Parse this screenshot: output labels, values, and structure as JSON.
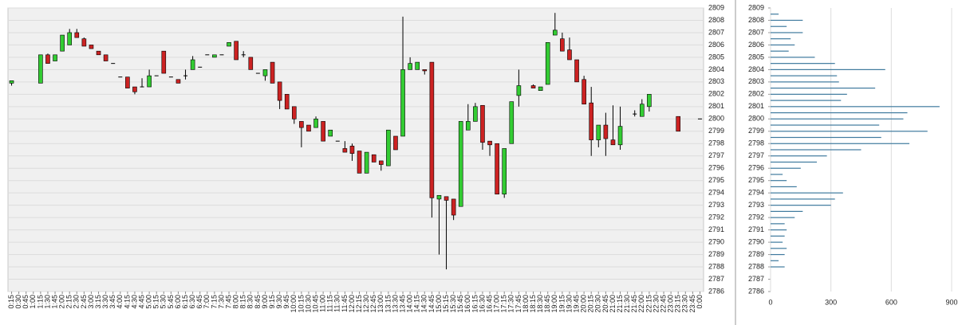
{
  "chart_data": [
    {
      "type": "candlestick",
      "up_color": "#33cc33",
      "down_color": "#cc2222",
      "grid": true,
      "ylim": [
        2786,
        2809
      ],
      "yticks": [
        2786,
        2787,
        2788,
        2789,
        2790,
        2791,
        2792,
        2793,
        2794,
        2795,
        2796,
        2797,
        2798,
        2799,
        2800,
        2801,
        2802,
        2803,
        2804,
        2805,
        2806,
        2807,
        2808,
        2809
      ],
      "categories": [
        "0:15",
        "0:30",
        "0:45",
        "1:00",
        "1:15",
        "1:30",
        "1:45",
        "2:00",
        "2:15",
        "2:30",
        "2:45",
        "3:00",
        "3:15",
        "3:30",
        "3:45",
        "4:00",
        "4:15",
        "4:30",
        "4:45",
        "5:00",
        "5:15",
        "5:30",
        "5:45",
        "6:00",
        "6:15",
        "6:30",
        "6:45",
        "7:00",
        "7:15",
        "7:30",
        "7:45",
        "8:00",
        "8:15",
        "8:30",
        "8:45",
        "9:00",
        "9:15",
        "9:30",
        "9:45",
        "10:00",
        "10:15",
        "10:30",
        "10:45",
        "11:00",
        "11:15",
        "11:30",
        "11:45",
        "12:00",
        "12:15",
        "12:30",
        "12:45",
        "13:00",
        "13:15",
        "13:30",
        "13:45",
        "14:00",
        "14:15",
        "14:30",
        "14:45",
        "15:00",
        "15:15",
        "15:30",
        "15:45",
        "16:00",
        "16:15",
        "16:30",
        "16:45",
        "17:00",
        "17:15",
        "17:30",
        "17:45",
        "18:00",
        "18:15",
        "18:30",
        "18:45",
        "19:00",
        "19:15",
        "19:30",
        "19:45",
        "20:00",
        "20:15",
        "20:30",
        "20:45",
        "21:00",
        "21:15",
        "21:30",
        "21:45",
        "22:00",
        "22:15",
        "22:30",
        "22:45",
        "23:00",
        "23:15",
        "23:30",
        "23:45",
        "0:00"
      ],
      "open": [
        2802.9,
        null,
        null,
        null,
        2802.9,
        2805.2,
        2804.7,
        2805.5,
        2806,
        2807,
        2806.5,
        2806,
        2805.5,
        2805.2,
        2804.5,
        2803.4,
        2803.4,
        2802.6,
        2802.6,
        2802.6,
        2803.5,
        2805.5,
        2803.4,
        2803.2,
        2803.5,
        2804,
        2804.2,
        2805.2,
        2805,
        2805.2,
        2805.9,
        2806.3,
        2805.2,
        2805,
        2803.7,
        2803.5,
        2804.6,
        2803,
        2802,
        2801,
        2799.8,
        2799.5,
        2799.3,
        2799.8,
        2798.6,
        2798.2,
        2797.6,
        2797.8,
        2797.4,
        2795.6,
        2797.1,
        2796.6,
        2796.2,
        2798.6,
        2798.6,
        2804,
        2804,
        2804,
        2804.6,
        2793.5,
        2793.7,
        2793.5,
        2792.9,
        2799.1,
        2799.8,
        2801.1,
        2798.2,
        2798,
        2793.9,
        2798,
        2801.9,
        null,
        2802.7,
        2802.3,
        2802.8,
        2806.8,
        2806.5,
        2805.6,
        2804.8,
        2803.2,
        2801.3,
        2798.3,
        2799.5,
        2798.3,
        2797.9,
        null,
        2800.4,
        2800.2,
        2801,
        null,
        null,
        null,
        2800.2,
        null,
        null,
        2800
      ],
      "high": [
        2803.1,
        null,
        null,
        null,
        2805.2,
        2805.3,
        2805.2,
        2806.8,
        2807.3,
        2807.3,
        2806.6,
        2806,
        2805.5,
        2805.2,
        2804.5,
        2803.4,
        2803.4,
        2802.6,
        2803.3,
        2804,
        2803.5,
        2805.5,
        2803.4,
        2803.2,
        2804,
        2805.1,
        2804.2,
        2805.2,
        2805.2,
        2805.2,
        2806.2,
        2806.3,
        2805.5,
        2805,
        2803.7,
        2804,
        2804.6,
        2803,
        2802,
        2801,
        2799.8,
        2799.5,
        2800.2,
        2799.8,
        2799.1,
        2798.2,
        2798.2,
        2798,
        2797.4,
        2797.3,
        2797.1,
        2796.6,
        2799.1,
        2798.6,
        2808.3,
        2805,
        2804.6,
        2804,
        2804.6,
        2793.8,
        2793.7,
        2793.5,
        2799.8,
        2801.2,
        2801.3,
        2801.1,
        2798.2,
        2798,
        2797.6,
        2801.4,
        2804,
        null,
        2802.8,
        2802.6,
        2806.2,
        2808.6,
        2807,
        2806.6,
        2804.8,
        2803.5,
        2802.6,
        2799.5,
        2800.5,
        2801.1,
        2801,
        null,
        2800.7,
        2801.6,
        2802,
        null,
        null,
        null,
        2800.2,
        null,
        null,
        2800
      ],
      "low": [
        2802.7,
        null,
        null,
        null,
        2802.9,
        2804.5,
        2804.7,
        2805.5,
        2806,
        2806.6,
        2805.9,
        2805.7,
        2805.2,
        2804.7,
        2804.5,
        2803.4,
        2802.5,
        2802,
        2802.6,
        2802.6,
        2803.5,
        2803.7,
        2803.4,
        2802.9,
        2803.2,
        2804,
        2804.2,
        2805.2,
        2805,
        2805.2,
        2805.9,
        2804.8,
        2805,
        2804,
        2803.7,
        2803.1,
        2802.9,
        2800.8,
        2800.8,
        2799.6,
        2797.7,
        2799,
        2799.3,
        2798.2,
        2798.6,
        2798.2,
        2797.3,
        2796.6,
        2795.6,
        2795.6,
        2796.5,
        2795.8,
        2796.2,
        2797.5,
        2798.6,
        2804,
        2804,
        2803.6,
        2792,
        2789,
        2787.8,
        2791.8,
        2792.9,
        2799.1,
        2799.8,
        2797.5,
        2797,
        2793.9,
        2793.6,
        2798,
        2801,
        null,
        2802.5,
        2802.3,
        2802.8,
        2806.8,
        2805.5,
        2804.8,
        2803,
        2801.2,
        2797,
        2797.7,
        2797,
        2797.9,
        2797.5,
        null,
        2800.2,
        2800.2,
        2800.6,
        null,
        null,
        null,
        2799,
        null,
        null,
        2800
      ],
      "close": [
        2803.1,
        null,
        null,
        null,
        2805.2,
        2804.5,
        2805.2,
        2806.8,
        2807,
        2806.6,
        2805.9,
        2805.7,
        2805.2,
        2804.7,
        2804.5,
        2803.4,
        2802.5,
        2802.2,
        2802.6,
        2803.5,
        2803.5,
        2803.7,
        2803.4,
        2802.9,
        2803.5,
        2804.8,
        2804.2,
        2805.2,
        2805.2,
        2805.2,
        2806.2,
        2804.8,
        2805.2,
        2804,
        2803.7,
        2804,
        2802.9,
        2801.5,
        2800.8,
        2800,
        2799.3,
        2799,
        2800,
        2798.2,
        2799.1,
        2798.2,
        2797.3,
        2797.2,
        2795.6,
        2797.3,
        2796.5,
        2796.3,
        2799.1,
        2797.5,
        2804,
        2804.5,
        2804.6,
        2803.9,
        2793.6,
        2793.8,
        2793.4,
        2792.2,
        2799.8,
        2799.8,
        2801,
        2798.1,
        2797.9,
        2793.9,
        2797.6,
        2801.4,
        2802.7,
        null,
        2802.5,
        2802.6,
        2806.2,
        2807.2,
        2805.5,
        2804.8,
        2803,
        2801.2,
        2798.3,
        2799.5,
        2798.4,
        2797.9,
        2799.4,
        null,
        2800.4,
        2801.2,
        2802,
        null,
        null,
        null,
        2799,
        null,
        null,
        2800
      ]
    },
    {
      "type": "hbar",
      "color": "#3f7a9e",
      "grid": true,
      "xlim": [
        0,
        900
      ],
      "xticks": [
        0,
        300,
        600,
        900
      ],
      "ylim": [
        2786,
        2809
      ],
      "yticks": [
        2786,
        2787,
        2788,
        2789,
        2790,
        2791,
        2792,
        2793,
        2794,
        2795,
        2796,
        2797,
        2798,
        2799,
        2800,
        2801,
        2802,
        2803,
        2804,
        2805,
        2806,
        2807,
        2808,
        2809
      ],
      "prices": [
        2808.5,
        2808,
        2807.5,
        2807,
        2806.5,
        2806,
        2805.5,
        2805,
        2804.5,
        2804,
        2803.5,
        2803,
        2802.5,
        2802,
        2801.5,
        2801,
        2800.5,
        2800,
        2799.5,
        2799,
        2798.5,
        2798,
        2797.5,
        2797,
        2796.5,
        2796,
        2795.5,
        2795,
        2794.5,
        2794,
        2793.5,
        2793,
        2792.5,
        2792,
        2791.5,
        2791,
        2790.5,
        2790,
        2789.5,
        2789,
        2788.5,
        2788
      ],
      "values": [
        40,
        160,
        80,
        160,
        100,
        120,
        90,
        220,
        320,
        570,
        330,
        340,
        520,
        380,
        350,
        840,
        680,
        660,
        540,
        780,
        550,
        690,
        450,
        280,
        230,
        150,
        60,
        80,
        130,
        360,
        320,
        300,
        160,
        120,
        70,
        80,
        70,
        60,
        80,
        70,
        40,
        70
      ]
    }
  ]
}
